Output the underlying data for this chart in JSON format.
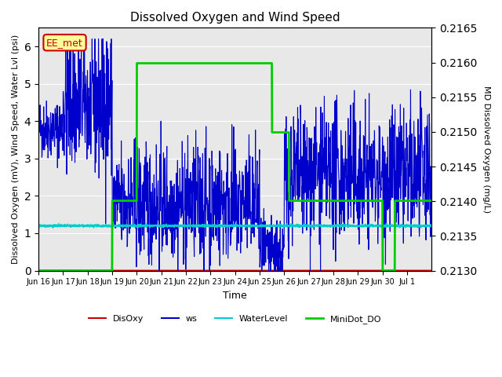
{
  "title": "Dissolved Oxygen and Wind Speed",
  "xlabel": "Time",
  "ylabel_left": "Dissolved Oxygen (mV), Wind Speed, Water Lvl (psi)",
  "ylabel_right": "MD Dissolved Oxygen (mg/L)",
  "ylim_left": [
    0.0,
    6.5
  ],
  "ylim_right": [
    0.213,
    0.2165
  ],
  "station_label": "EE_met",
  "xtick_labels": [
    "Jun 16",
    "Jun 17",
    "Jun 18",
    "Jun 19",
    "Jun 20",
    "Jun 21",
    "Jun 22",
    "Jun 23",
    "Jun 24",
    "Jun 25",
    "Jun 26",
    "Jun 27",
    "Jun 28",
    "Jun 29",
    "Jun 30",
    "Jul 1"
  ],
  "bg_color": "#e8e8e8",
  "disoxy_color": "#cc0000",
  "ws_color": "#0000cc",
  "water_color": "#00cccc",
  "minido_color": "#00cc00"
}
